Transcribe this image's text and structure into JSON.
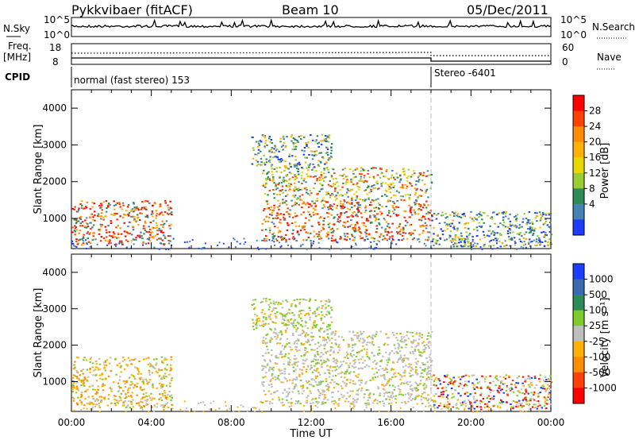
{
  "header": {
    "station": "Pykkvibaer (fitACF)",
    "beam": "Beam 10",
    "date": "05/Dec/2011"
  },
  "strips": {
    "nsky_label": "N.Sky",
    "nsky_ticks": [
      "10^5",
      "10^0"
    ],
    "nsearch_label": "N.Search",
    "nsearch_ticks": [
      "10^5",
      "10^0"
    ],
    "freq_label": "Freq.",
    "freq_unit": "[MHz]",
    "freq_ticks": [
      "18",
      "8"
    ],
    "nave_label": "Nave",
    "nave_ticks": [
      "60",
      "0"
    ],
    "cpid_label": "CPID",
    "cpid_segments": [
      {
        "label": "normal (fast stereo) 153",
        "start_hour": 0,
        "end_hour": 18
      },
      {
        "label": "Stereo -6401",
        "start_hour": 18,
        "end_hour": 24
      }
    ]
  },
  "colorbars": {
    "power": {
      "title": "Power [dB]",
      "ticks": [
        "28",
        "24",
        "20",
        "16",
        "12",
        "8",
        "4"
      ],
      "colors": [
        "#ff0000",
        "#ff4000",
        "#ff8c00",
        "#ffb000",
        "#e8d800",
        "#9acd32",
        "#2e8b57",
        "#4682b4",
        "#1e3cff"
      ]
    },
    "velocity": {
      "title": "Velocity [m s⁻¹]",
      "ticks": [
        "1000",
        "500",
        "100",
        "25",
        "-25",
        "-100",
        "-500",
        "-1000"
      ],
      "colors": [
        "#1e3cff",
        "#3a6ab0",
        "#2e8b57",
        "#7ccd2a",
        "#bebebe",
        "#ffb000",
        "#ff8c00",
        "#ff4000",
        "#ff0000"
      ]
    }
  },
  "chart_data": [
    {
      "type": "heatmap",
      "name": "power-panel",
      "ylabel": "Slant Range [km]",
      "xlabel": "Time UT",
      "x_ticks": [
        "00:00",
        "04:00",
        "08:00",
        "12:00",
        "16:00",
        "20:00",
        "00:00"
      ],
      "xlim_hours": [
        0,
        24
      ],
      "y_ticks": [
        "1000",
        "2000",
        "3000",
        "4000"
      ],
      "ylim_km": [
        180,
        4500
      ],
      "echo_regions": [
        {
          "t0": 0.0,
          "t1": 5.0,
          "r0": 300,
          "r1": 1500,
          "level": "high"
        },
        {
          "t0": 9.5,
          "t1": 18.0,
          "r0": 400,
          "r1": 1500,
          "level": "high"
        },
        {
          "t0": 9.5,
          "t1": 18.0,
          "r0": 1500,
          "r1": 2400,
          "level": "mid"
        },
        {
          "t0": 9.0,
          "t1": 13.0,
          "r0": 2400,
          "r1": 3300,
          "level": "low"
        },
        {
          "t0": 18.0,
          "t1": 24.0,
          "r0": 250,
          "r1": 1200,
          "level": "low"
        }
      ]
    },
    {
      "type": "heatmap",
      "name": "velocity-panel",
      "ylabel": "Slant Range [km]",
      "xlabel": "Time UT",
      "x_ticks": [
        "00:00",
        "04:00",
        "08:00",
        "12:00",
        "16:00",
        "20:00",
        "00:00"
      ],
      "xlim_hours": [
        0,
        24
      ],
      "y_ticks": [
        "1000",
        "2000",
        "3000",
        "4000"
      ],
      "ylim_km": [
        180,
        4500
      ],
      "echo_regions": [
        {
          "t0": 0.0,
          "t1": 5.0,
          "r0": 300,
          "r1": 1700,
          "level": "neg-low"
        },
        {
          "t0": 9.5,
          "t1": 18.0,
          "r0": 400,
          "r1": 2400,
          "level": "near-zero"
        },
        {
          "t0": 9.0,
          "t1": 13.0,
          "r0": 2400,
          "r1": 3300,
          "level": "pos-low"
        },
        {
          "t0": 18.0,
          "t1": 24.0,
          "r0": 250,
          "r1": 1200,
          "level": "mixed"
        }
      ]
    }
  ],
  "xaxis": {
    "title": "Time UT"
  }
}
